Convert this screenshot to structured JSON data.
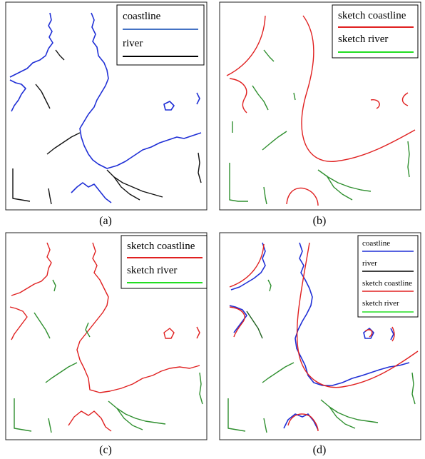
{
  "panels": {
    "a": {
      "caption": "(a)",
      "legend": [
        {
          "label": "coastline",
          "color": "#4472c4"
        },
        {
          "label": "river",
          "color": "#000000"
        }
      ]
    },
    "b": {
      "caption": "(b)",
      "legend": [
        {
          "label": "sketch coastline",
          "color": "#e02020"
        },
        {
          "label": "sketch river",
          "color": "#22dd22"
        }
      ]
    },
    "c": {
      "caption": "(c)",
      "legend": [
        {
          "label": "sketch coastline",
          "color": "#e02020"
        },
        {
          "label": "sketch river",
          "color": "#22dd22"
        }
      ]
    },
    "d": {
      "caption": "(d)",
      "legend": [
        {
          "label": "coastline",
          "color": "#1f2fd6"
        },
        {
          "label": "river",
          "color": "#000000"
        },
        {
          "label": "sketch coastline",
          "color": "#e02020"
        },
        {
          "label": "sketch river",
          "color": "#22dd22"
        }
      ]
    }
  },
  "colors": {
    "coastline": "#1f2fd6",
    "river": "#111111",
    "sketch_coastline": "#e02020",
    "sketch_river": "#2f8f2f"
  }
}
